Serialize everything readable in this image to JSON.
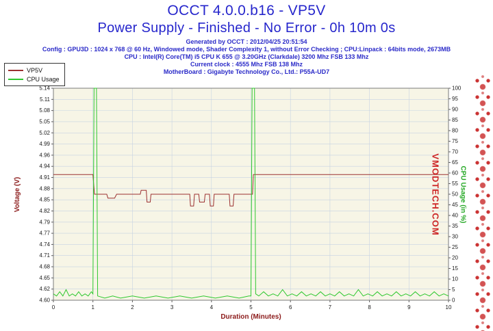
{
  "header": {
    "info_lines": [
      "Generated by OCCT : 2012/04/25 20:51:54",
      "Config : GPU3D : 1024 x 768 @ 60 Hz, Windowed mode, Shader Complexity 1, without Error Checking ; CPU:Linpack : 64bits mode, 2673MB",
      "CPU : Intel(R) Core(TM) i5 CPU K 655 @ 3.20GHz (Clarkdale) 3200 Mhz FSB 133 Mhz",
      "Current clock : 4555 Mhz FSB 138 Mhz",
      "MotherBoard : Gigabyte Technology Co., Ltd.: P55A-UD7"
    ]
  },
  "watermark": {
    "text": "VMODTECH.COM",
    "color": "#cd2626"
  },
  "chart_data": {
    "type": "line",
    "title": "OCCT 4.0.0.b16 - VP5V",
    "subtitle": "Power Supply - Finished - No Error - 0h 10m 0s",
    "xlabel": "Duration (Minutes)",
    "ylabel_left": "Voltage (V)",
    "ylabel_right": "CPU Usage (in %)",
    "plot_bg": "#f7f5e6",
    "grid_color": "#c6d2e2",
    "border_color": "#7a7a7a",
    "x_range": [
      0,
      10
    ],
    "x_ticks": [
      0,
      1,
      2,
      3,
      4,
      5,
      6,
      7,
      8,
      9,
      10
    ],
    "y_left_range": [
      4.6,
      5.14
    ],
    "y_left_ticks": [
      5.14,
      5.11,
      5.08,
      5.05,
      5.02,
      4.99,
      4.96,
      4.94,
      4.91,
      4.88,
      4.85,
      4.82,
      4.79,
      4.77,
      4.74,
      4.71,
      4.68,
      4.65,
      4.62,
      4.6
    ],
    "y_right_range": [
      0,
      100
    ],
    "y_right_ticks": [
      100,
      95,
      90,
      85,
      80,
      75,
      70,
      65,
      60,
      55,
      50,
      45,
      40,
      35,
      30,
      25,
      20,
      15,
      10,
      5,
      0
    ],
    "grid": true,
    "legend_position": "top-left",
    "series": [
      {
        "name": "VP5V",
        "color": "#9b3030",
        "axis": "left",
        "points": [
          [
            0,
            4.92
          ],
          [
            0.5,
            4.92
          ],
          [
            1.0,
            4.92
          ],
          [
            1.04,
            4.87
          ],
          [
            1.35,
            4.87
          ],
          [
            1.38,
            4.86
          ],
          [
            1.55,
            4.86
          ],
          [
            1.6,
            4.87
          ],
          [
            2.2,
            4.87
          ],
          [
            2.22,
            4.88
          ],
          [
            2.35,
            4.88
          ],
          [
            2.37,
            4.85
          ],
          [
            2.45,
            4.85
          ],
          [
            2.47,
            4.87
          ],
          [
            3.45,
            4.87
          ],
          [
            3.47,
            4.84
          ],
          [
            3.55,
            4.84
          ],
          [
            3.57,
            4.87
          ],
          [
            3.68,
            4.87
          ],
          [
            3.7,
            4.85
          ],
          [
            3.82,
            4.85
          ],
          [
            3.84,
            4.87
          ],
          [
            3.95,
            4.87
          ],
          [
            3.97,
            4.84
          ],
          [
            4.05,
            4.84
          ],
          [
            4.07,
            4.87
          ],
          [
            4.45,
            4.87
          ],
          [
            4.47,
            4.84
          ],
          [
            4.55,
            4.84
          ],
          [
            4.57,
            4.87
          ],
          [
            5.04,
            4.87
          ],
          [
            5.06,
            4.92
          ],
          [
            7.5,
            4.92
          ],
          [
            10,
            4.92
          ]
        ]
      },
      {
        "name": "CPU Usage",
        "color": "#2ec82e",
        "axis": "right",
        "points": [
          [
            0,
            3
          ],
          [
            0.08,
            2
          ],
          [
            0.16,
            4
          ],
          [
            0.24,
            2
          ],
          [
            0.32,
            5
          ],
          [
            0.4,
            2
          ],
          [
            0.48,
            3
          ],
          [
            0.56,
            2
          ],
          [
            0.64,
            4
          ],
          [
            0.72,
            2
          ],
          [
            0.8,
            3
          ],
          [
            0.88,
            2
          ],
          [
            0.96,
            4
          ],
          [
            1.0,
            3
          ],
          [
            1.03,
            100
          ],
          [
            1.09,
            100
          ],
          [
            1.12,
            2
          ],
          [
            1.3,
            1
          ],
          [
            1.5,
            2
          ],
          [
            1.7,
            1
          ],
          [
            2.0,
            2
          ],
          [
            2.3,
            1
          ],
          [
            2.6,
            2
          ],
          [
            2.9,
            1
          ],
          [
            3.2,
            2
          ],
          [
            3.5,
            1
          ],
          [
            3.8,
            2
          ],
          [
            4.1,
            1
          ],
          [
            4.4,
            2
          ],
          [
            4.7,
            1
          ],
          [
            4.95,
            2
          ],
          [
            5.0,
            2
          ],
          [
            5.03,
            100
          ],
          [
            5.09,
            100
          ],
          [
            5.12,
            3
          ],
          [
            5.2,
            2
          ],
          [
            5.32,
            4
          ],
          [
            5.44,
            2
          ],
          [
            5.56,
            3
          ],
          [
            5.68,
            2
          ],
          [
            5.8,
            5
          ],
          [
            5.92,
            2
          ],
          [
            6.04,
            3
          ],
          [
            6.16,
            2
          ],
          [
            6.28,
            4
          ],
          [
            6.4,
            2
          ],
          [
            6.52,
            3
          ],
          [
            6.64,
            2
          ],
          [
            6.76,
            4
          ],
          [
            6.88,
            2
          ],
          [
            7.0,
            3
          ],
          [
            7.12,
            2
          ],
          [
            7.24,
            4
          ],
          [
            7.36,
            2
          ],
          [
            7.48,
            3
          ],
          [
            7.6,
            2
          ],
          [
            7.72,
            5
          ],
          [
            7.84,
            2
          ],
          [
            7.96,
            3
          ],
          [
            8.08,
            2
          ],
          [
            8.2,
            4
          ],
          [
            8.32,
            2
          ],
          [
            8.44,
            3
          ],
          [
            8.56,
            2
          ],
          [
            8.68,
            4
          ],
          [
            8.8,
            2
          ],
          [
            8.92,
            3
          ],
          [
            9.04,
            2
          ],
          [
            9.16,
            4
          ],
          [
            9.28,
            2
          ],
          [
            9.4,
            3
          ],
          [
            9.52,
            2
          ],
          [
            9.64,
            4
          ],
          [
            9.76,
            2
          ],
          [
            9.88,
            3
          ],
          [
            10,
            2
          ]
        ]
      }
    ]
  }
}
